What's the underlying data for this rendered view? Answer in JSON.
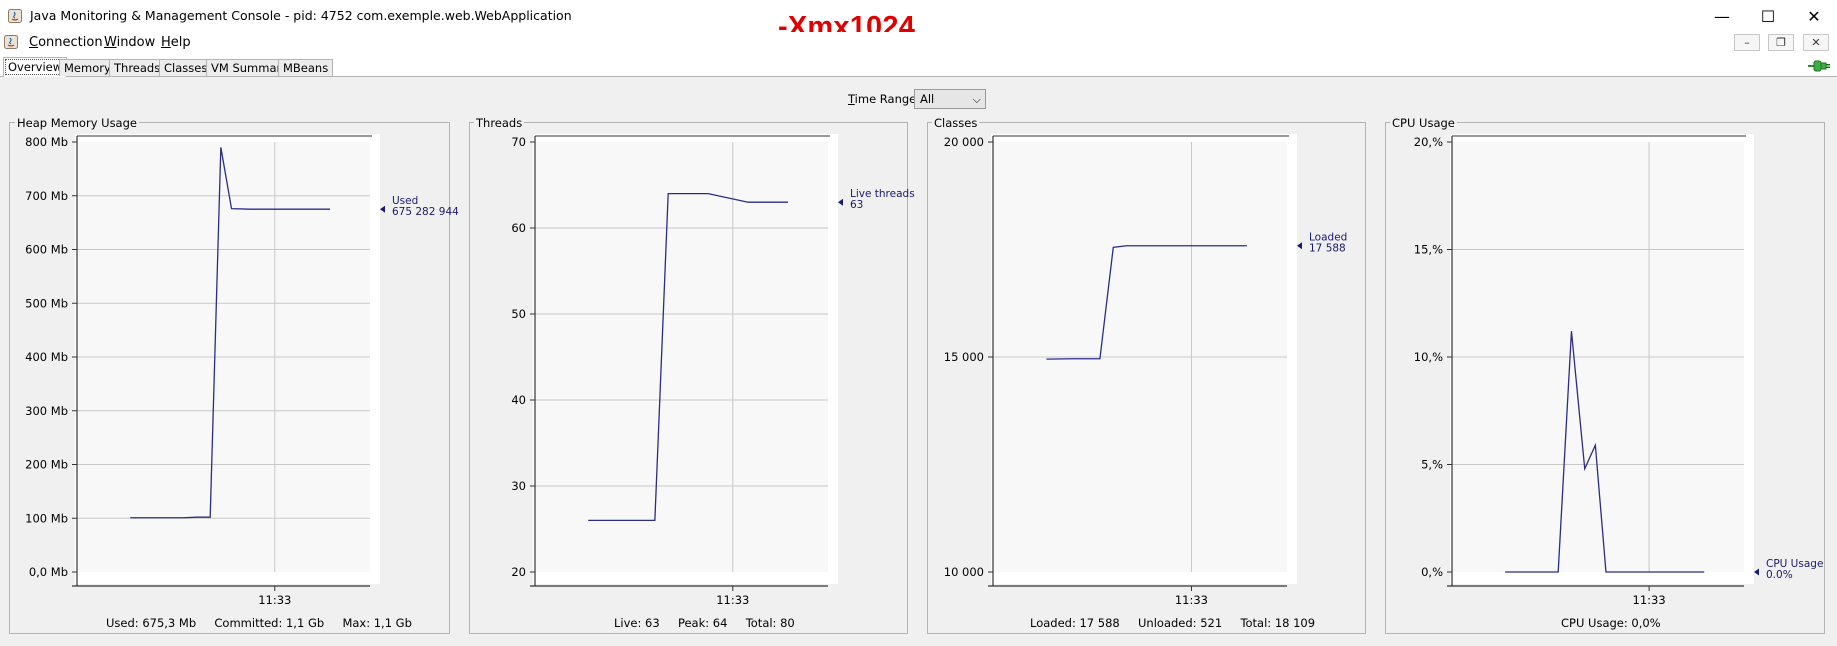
{
  "window": {
    "title": "Java Monitoring & Management Console - pid: 4752 com.exemple.web.WebApplication",
    "controls": {
      "minimize": "—",
      "maximize": "☐",
      "close": "✕"
    }
  },
  "annotation": "-Xmx1024",
  "menu": {
    "items": [
      {
        "label": "Connection"
      },
      {
        "label": "Window"
      },
      {
        "label": "Help"
      }
    ],
    "mdi_controls": {
      "minimize": "–",
      "restore": "❐",
      "close": "✕"
    }
  },
  "tabs": [
    {
      "label": "Overview",
      "selected": true
    },
    {
      "label": "Memory"
    },
    {
      "label": "Threads"
    },
    {
      "label": "Classes"
    },
    {
      "label": "VM Summary"
    },
    {
      "label": "MBeans"
    }
  ],
  "time_range": {
    "label": "Time Range:",
    "value": "All"
  },
  "chart_data": [
    {
      "type": "line",
      "title": "Heap Memory Usage",
      "y_ticks": [
        "0,0 Mb",
        "100 Mb",
        "200 Mb",
        "300 Mb",
        "400 Mb",
        "500 Mb",
        "600 Mb",
        "700 Mb",
        "800 Mb"
      ],
      "ylim": [
        0,
        800
      ],
      "x_tick": "11:33",
      "series": [
        {
          "name": "Used",
          "x": [
            0,
            10,
            20,
            25,
            30,
            34,
            38,
            45,
            60,
            75
          ],
          "values": [
            101,
            101,
            101,
            102,
            102,
            790,
            676,
            675,
            675,
            675
          ]
        }
      ],
      "current_label": "Used",
      "current_value": "675 282 944",
      "current_y": 675,
      "stats": [
        "Used: 675,3 Mb",
        "Committed: 1,1 Gb",
        "Max: 1,1 Gb"
      ],
      "color": "#2b2b8a"
    },
    {
      "type": "line",
      "title": "Threads",
      "y_ticks": [
        "20",
        "30",
        "40",
        "50",
        "60",
        "70"
      ],
      "ylim": [
        20,
        70
      ],
      "x_tick": "11:33",
      "series": [
        {
          "name": "Live threads",
          "x": [
            0,
            10,
            20,
            25,
            30,
            34,
            38,
            45,
            60,
            75
          ],
          "values": [
            26,
            26,
            26,
            26,
            64,
            64,
            64,
            64,
            63,
            63
          ]
        }
      ],
      "current_label": "Live threads",
      "current_value": "63",
      "current_y": 63,
      "stats": [
        "Live: 63",
        "Peak: 64",
        "Total: 80"
      ],
      "color": "#2b2b8a"
    },
    {
      "type": "line",
      "title": "Classes",
      "y_ticks": [
        "10 000",
        "15 000",
        "20 000"
      ],
      "ylim": [
        10000,
        20000
      ],
      "x_tick": "11:33",
      "series": [
        {
          "name": "Loaded",
          "x": [
            0,
            10,
            20,
            25,
            30,
            34,
            38,
            45,
            60,
            75
          ],
          "values": [
            14950,
            14960,
            14960,
            17550,
            17588,
            17588,
            17588,
            17588,
            17588,
            17588
          ]
        }
      ],
      "current_label": "Loaded",
      "current_value": "17 588",
      "current_y": 17588,
      "stats": [
        "Loaded: 17 588",
        "Unloaded: 521",
        "Total: 18 109"
      ],
      "color": "#2b2b8a"
    },
    {
      "type": "line",
      "title": "CPU Usage",
      "y_ticks": [
        "0,%",
        "5,%",
        "10,%",
        "15,%",
        "20,%"
      ],
      "ylim": [
        0,
        20
      ],
      "x_tick": "11:33",
      "series": [
        {
          "name": "CPU Usage",
          "x": [
            0,
            10,
            20,
            25,
            30,
            34,
            38,
            45,
            60,
            75
          ],
          "values": [
            0,
            0,
            0,
            11.2,
            4.8,
            5.9,
            0,
            0,
            0,
            0
          ]
        }
      ],
      "current_label": "CPU Usage",
      "current_value": "0.0%",
      "current_y": 0,
      "stats": [
        "CPU Usage: 0,0%"
      ],
      "color": "#2b2b8a"
    }
  ]
}
